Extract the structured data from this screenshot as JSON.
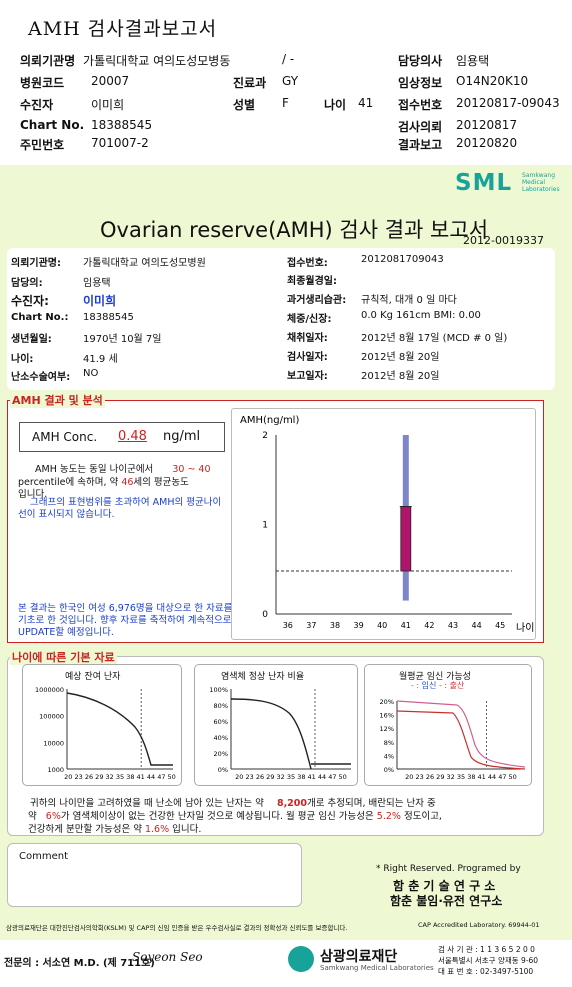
{
  "header": {
    "title": "AMH 검사결과보고서",
    "rows": [
      {
        "l1": "의뢰기관명",
        "v1": "가톨릭대학교 여의도성모병동",
        "v1b": "/ -",
        "l3": "담당의사",
        "v3": "임용택"
      },
      {
        "l1": "병원코드",
        "v1": "20007",
        "l2": "진료과",
        "v2": "GY",
        "l3": "임상정보",
        "v3": "O14N20K10"
      },
      {
        "l1": "수진자",
        "v1": "이미희",
        "l2": "성별",
        "v2": "F",
        "l2b": "나이",
        "v2b": "41",
        "l3": "접수번호",
        "v3": "20120817-09043"
      },
      {
        "l1": "Chart No.",
        "v1": "18388545",
        "l3": "검사의뢰",
        "v3": "20120817"
      },
      {
        "l1": "주민번호",
        "v1": "701007-2",
        "l3": "결과보고",
        "v3": "20120820"
      }
    ]
  },
  "brand": {
    "logo": "SML",
    "logo_sub": "Samkwang Medical Laboratories"
  },
  "report": {
    "title": "Ovarian reserve(AMH) 검사 결과 보고서",
    "number": "2012-0019337",
    "left": [
      {
        "label": "의뢰기관명:",
        "value": "가톨릭대학교 여의도성모병원"
      },
      {
        "label": "담당의:",
        "value": "임용택"
      },
      {
        "label": "수진자:",
        "value": "이미희"
      },
      {
        "label": "Chart No.:",
        "value": "18388545"
      },
      {
        "label": "생년월일:",
        "value": "1970년 10월 7일"
      },
      {
        "label": "나이:",
        "value": "41.9 세"
      },
      {
        "label": "난소수술여부:",
        "value": "NO"
      }
    ],
    "right": [
      {
        "label": "접수번호:",
        "value": "2012081709043"
      },
      {
        "label": "최종월경일:",
        "value": ""
      },
      {
        "label": "과거생리습관:",
        "value": "규칙적, 대개    0  일 마다"
      },
      {
        "label": "체중/신장:",
        "value": "0.0 Kg   161cm    BMI:    0.00"
      },
      {
        "label": "채취일자:",
        "value": "2012년 8월 17일   (MCD #  0 일)"
      },
      {
        "label": "검사일자:",
        "value": "2012년 8월 20일"
      },
      {
        "label": "보고일자:",
        "value": "2012년 8월 20일"
      }
    ]
  },
  "result": {
    "section_title": "AMH 결과 및 분석",
    "conc_label": "AMH Conc.",
    "conc_value": "0.48",
    "conc_unit": "ng/ml",
    "desc1a": "AMH 농도는 동일 나이군에서",
    "desc1b": "30 ~  40",
    "desc2a": "percentile에 속하며, 약",
    "desc2b": "46",
    "desc2c": "세의 평균농도",
    "desc3": "입니다.",
    "note": "그래프의 표현범위를 초과하여 AMH의 평균나이선이 표시되지 않습니다.",
    "footnote": "본 결과는 한국인 여성 6,976명을 대상으로 한 자료를 기초로 한 것입니다. 향후 자료를 축적하여 계속적으로 UPDATE할 예정입니다."
  },
  "chart_data": {
    "type": "box",
    "ylabel": "AMH(ng/ml)",
    "xlabel": "나이",
    "x_ticks": [
      "36",
      "37",
      "38",
      "39",
      "40",
      "41",
      "42",
      "43",
      "44",
      "45"
    ],
    "y_ticks": [
      "0",
      "1",
      "2"
    ],
    "ylim": [
      0,
      2
    ],
    "box": {
      "x": 41,
      "q1": 0.48,
      "q3": 1.2,
      "whisker_low": 0.15,
      "whisker_high": 2.0
    },
    "patient_value": 0.48,
    "colors": {
      "box": "#b0156e",
      "whisker": "#7f86c8",
      "line": "#333333"
    }
  },
  "age_section": {
    "title": "나이에 따른 기본 자료",
    "charts": [
      {
        "title": "예상 잔여 난자",
        "yticks": [
          "1000000",
          "100000",
          "10000",
          "1000"
        ],
        "xticks": "20 23 26 29 32 35 38 41 44 47 50"
      },
      {
        "title": "염색체 정상 난자 비율",
        "yticks": [
          "100%",
          "80%",
          "60%",
          "40%",
          "20%",
          "0%"
        ],
        "xticks": "20 23 26 29 32 35 38 41 44 47 50"
      },
      {
        "title": "월평균 임신 가능성",
        "legend1": "임신",
        "legend2": "출산",
        "yticks": [
          "20%",
          "16%",
          "12%",
          "8%",
          "4%",
          "0%"
        ],
        "xticks": "20 23 26 29 32 35 38 41 44 47 50"
      }
    ],
    "summary1a": "귀하의 나이만을 고려하였을 때 난소에 남아 있는 난자는 약",
    "summary1b": "8,200",
    "summary1c": "개로 추정되며, 배란되는 난자 중",
    "summary2a": "약",
    "summary2b": "6%",
    "summary2c": "가 염색체이상이 없는 건강한 난자일 것으로 예상됩니다. 월 평균 임신 가능성은",
    "summary2d": "5.2%",
    "summary2e": "정도이고,",
    "summary3a": "건강하게 분만할 가능성은 약",
    "summary3b": "1.6%",
    "summary3c": "입니다."
  },
  "comment": {
    "label": "Comment"
  },
  "credits": {
    "rights": "* Right Reserved. Programed by",
    "lab1": "함 춘 기 술 연 구 소",
    "lab2": "함춘 불임·유전 연구소"
  },
  "footer": {
    "cert": "삼광의료재단은 대한진단검사의학회(KSLM) 및 CAP의 신임 인증을 받은 우수검사실로 결과의 정확성과 신뢰도를 보증합니다.",
    "cap": "CAP Accredited Laboratory. 69944-01",
    "doctor": "전문의 : 서소연 M.D. (제 711호)",
    "signature": "Soyeon Seo",
    "foundation": "삼광의료재단",
    "foundation_sub": "Samkwang Medical Laboratories",
    "contact1": "검 사 기 관 : 1 1 3 6 5 2 0 0",
    "contact2": "서울특별시 서초구 양재동 9-60",
    "contact3": "대 표 번 호 : 02-3497-5100"
  }
}
